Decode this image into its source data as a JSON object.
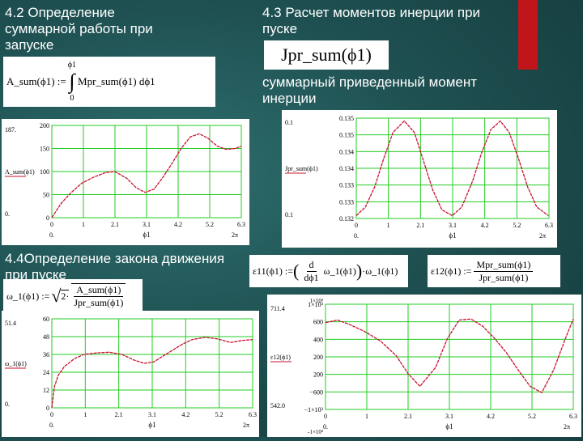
{
  "left_heading": {
    "line1": "4.2 Определение",
    "line2": "суммарной работы при",
    "line3": "запуске"
  },
  "right_heading": {
    "line1": "4.3 Расчет моментов инерции при",
    "line2": "пуске"
  },
  "moment_text": {
    "line1": "суммарный приведенный момент",
    "line2": "инерции"
  },
  "sec44_heading": {
    "line1": "4.4Определение закона движения",
    "line2": "при пуске"
  },
  "formulas": {
    "a_sum_lhs": "A_sum(ϕ1) :=",
    "a_sum_upper": "ϕ1",
    "a_sum_lower": "0",
    "a_sum_body": "Mpr_sum(ϕ1) dϕ1",
    "jpr_title": "Jpr_sum(ϕ1)",
    "omega_lhs": "ω_1(ϕ1) :=",
    "omega_coef": "2·",
    "omega_num": "A_sum(ϕ1)",
    "omega_den": "Jpr_sum(ϕ1)",
    "eps11_lhs": "ε11(ϕ1) :=",
    "eps11_d": "d",
    "eps11_dphi": "dϕ1",
    "eps11_mid": "ω_1(ϕ1)",
    "eps11_tail": "·ω_1(ϕ1)",
    "eps12_lhs": "ε12(ϕ1) :=",
    "eps12_num": "Mpr_sum(ϕ1)",
    "eps12_den": "Jpr_sum(ϕ1)"
  },
  "colors": {
    "curve": "#c8102e",
    "grid": "#22cc22",
    "accent": "#c0161b"
  },
  "chart_data": [
    {
      "type": "line",
      "name_label": "A_sum(ϕ1)",
      "y_top_label": "187.",
      "y_bot_label": "0.",
      "x_bot_left": "0.",
      "x_bot_mid": "ϕ1",
      "x_bot_right": "2π",
      "x_ticks": [
        "0",
        "1",
        "2.1",
        "3.1",
        "4.2",
        "5.2",
        "6.3"
      ],
      "y_ticks": [
        "200",
        "150",
        "100",
        "50",
        "0"
      ],
      "xlim": [
        0,
        6.3
      ],
      "ylim": [
        0,
        200
      ],
      "x": [
        0,
        0.3,
        0.6,
        1.0,
        1.4,
        1.8,
        2.1,
        2.5,
        2.8,
        3.1,
        3.4,
        3.7,
        4.0,
        4.3,
        4.6,
        4.9,
        5.2,
        5.5,
        5.8,
        6.1,
        6.3
      ],
      "y": [
        0,
        30,
        52,
        75,
        88,
        98,
        100,
        85,
        65,
        55,
        62,
        88,
        118,
        150,
        175,
        182,
        172,
        155,
        148,
        150,
        155
      ]
    },
    {
      "type": "line",
      "name_label": "Jpr_sum(ϕ1)",
      "y_top_label": "0.1",
      "y_bot_label": "0.1",
      "x_bot_left": "0.",
      "x_bot_mid": "ϕ1",
      "x_bot_right": "2π",
      "x_ticks": [
        "0",
        "1",
        "2.1",
        "3.1",
        "4.2",
        "5.2",
        "6.3"
      ],
      "y_ticks": [
        "0.135",
        "0.135",
        "0.134",
        "0.134",
        "0.133",
        "0.133",
        "0.132"
      ],
      "xlim": [
        0,
        6.3
      ],
      "ylim": [
        0.132,
        0.1355
      ],
      "x": [
        0,
        0.3,
        0.6,
        0.9,
        1.2,
        1.57,
        1.9,
        2.2,
        2.5,
        2.8,
        3.14,
        3.45,
        3.8,
        4.1,
        4.4,
        4.71,
        5.0,
        5.3,
        5.6,
        5.9,
        6.28
      ],
      "y": [
        0.1321,
        0.1324,
        0.1331,
        0.1341,
        0.135,
        0.1354,
        0.135,
        0.134,
        0.133,
        0.1323,
        0.1321,
        0.1324,
        0.1333,
        0.1343,
        0.1351,
        0.1354,
        0.135,
        0.1341,
        0.1331,
        0.1324,
        0.1321
      ]
    },
    {
      "type": "line",
      "name_label": "ω_1(ϕ1)",
      "y_top_label": "51.4",
      "y_bot_label": "0.",
      "x_bot_left": "0.",
      "x_bot_mid": "ϕ1",
      "x_bot_right": "2π",
      "x_ticks": [
        "0",
        "1",
        "2.1",
        "3.1",
        "4.2",
        "5.2",
        "6.3"
      ],
      "y_ticks": [
        "60",
        "48",
        "36",
        "24",
        "12",
        "0"
      ],
      "xlim": [
        0,
        6.3
      ],
      "ylim": [
        0,
        60
      ],
      "x": [
        0,
        0.08,
        0.2,
        0.4,
        0.7,
        1.0,
        1.4,
        1.8,
        2.2,
        2.6,
        2.9,
        3.2,
        3.5,
        3.8,
        4.1,
        4.4,
        4.8,
        5.2,
        5.6,
        6.0,
        6.3
      ],
      "y": [
        0,
        14,
        22,
        28,
        33,
        36,
        37,
        37.5,
        36,
        32,
        30,
        31,
        35,
        39,
        43,
        46,
        47.5,
        46.5,
        44,
        45.5,
        46
      ]
    },
    {
      "type": "line",
      "name_label": "ε12(ϕ1)",
      "y_top_label": "711.4",
      "y_bot_label": "542.0",
      "x_bot_left": "0.",
      "x_bot_mid": "ϕ1",
      "x_bot_right": "2π",
      "top_exp": "1×10³",
      "bot_exp": "-1×10³",
      "x_ticks": [
        "0",
        "1",
        "2.1",
        "3.1",
        "4.2",
        "5.2",
        "6.3"
      ],
      "y_ticks": [
        "1×10³",
        "600",
        "400",
        "200",
        "200",
        "−600",
        "−1×10³"
      ],
      "xlim": [
        0,
        6.3
      ],
      "ylim": [
        -1000,
        1000
      ],
      "x": [
        0,
        0.3,
        0.6,
        1.0,
        1.4,
        1.8,
        2.1,
        2.4,
        2.8,
        3.1,
        3.4,
        3.7,
        4.0,
        4.3,
        4.6,
        4.9,
        5.2,
        5.5,
        5.8,
        6.1,
        6.3
      ],
      "y": [
        650,
        700,
        620,
        480,
        300,
        20,
        -320,
        -560,
        -200,
        350,
        700,
        720,
        580,
        350,
        80,
        -250,
        -560,
        -680,
        -250,
        350,
        720
      ]
    }
  ]
}
